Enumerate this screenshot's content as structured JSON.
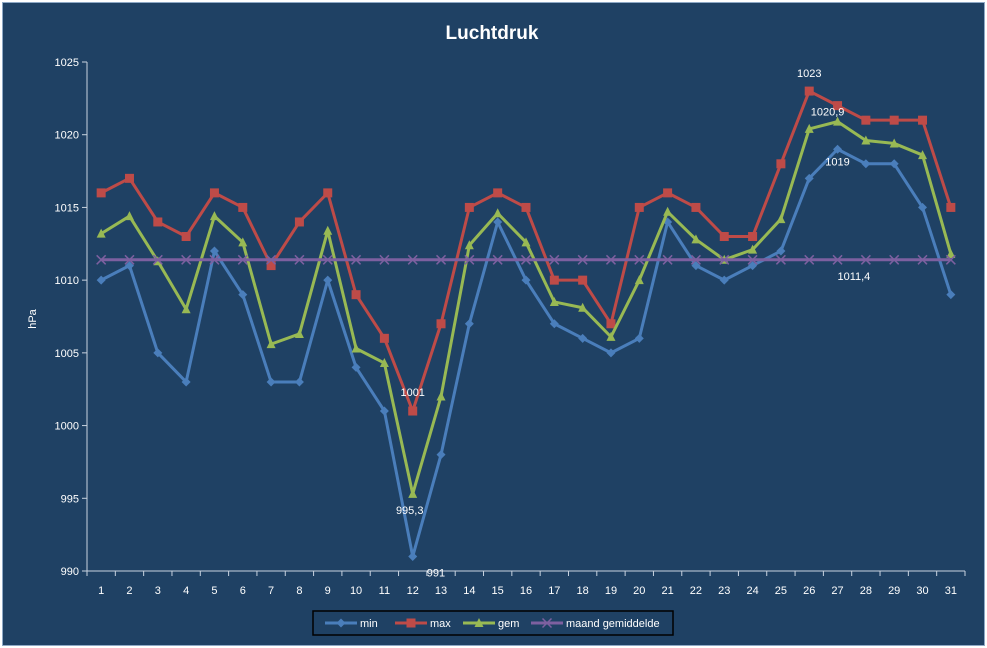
{
  "chart_data": {
    "type": "line",
    "title": "Luchtdruk",
    "ylabel": "hPa",
    "xlabel": "",
    "ylim": [
      990,
      1025
    ],
    "yticks": [
      990,
      995,
      1000,
      1005,
      1010,
      1015,
      1020,
      1025
    ],
    "grid": false,
    "legend_position": "bottom",
    "categories": [
      "1",
      "2",
      "3",
      "4",
      "5",
      "6",
      "7",
      "8",
      "9",
      "10",
      "11",
      "12",
      "13",
      "14",
      "15",
      "16",
      "17",
      "18",
      "19",
      "20",
      "21",
      "22",
      "23",
      "24",
      "25",
      "26",
      "27",
      "28",
      "29",
      "30",
      "31"
    ],
    "series": [
      {
        "name": "min",
        "color": "#4a7ebb",
        "marker": "diamond",
        "values": [
          1010,
          1011,
          1005,
          1003,
          1012,
          1009,
          1003,
          1003,
          1010,
          1004,
          1001,
          991,
          998,
          1007,
          1014,
          1010,
          1007,
          1006,
          1005,
          1006,
          1014,
          1011,
          1010,
          1011,
          1012,
          1017,
          1019,
          1018,
          1018,
          1015,
          1009
        ]
      },
      {
        "name": "max",
        "color": "#be4b48",
        "marker": "square",
        "values": [
          1016,
          1017,
          1014,
          1013,
          1016,
          1015,
          1011,
          1014,
          1016,
          1009,
          1006,
          1001,
          1007,
          1015,
          1016,
          1015,
          1010,
          1010,
          1007,
          1015,
          1016,
          1015,
          1013,
          1013,
          1018,
          1023,
          1022,
          1021,
          1021,
          1021,
          1015
        ]
      },
      {
        "name": "gem",
        "color": "#98b954",
        "marker": "triangle",
        "values": [
          1013.2,
          1014.4,
          1011.3,
          1008,
          1014.4,
          1012.6,
          1005.6,
          1006.3,
          1013.4,
          1005.3,
          1004.3,
          995.3,
          1002,
          1012.4,
          1014.6,
          1012.6,
          1008.5,
          1008.1,
          1006.1,
          1010,
          1014.7,
          1012.8,
          1011.4,
          1012.1,
          1014.2,
          1020.4,
          1020.9,
          1019.6,
          1019.4,
          1018.6,
          1011.8
        ]
      },
      {
        "name": "maand gemiddelde",
        "color": "#7d60a0",
        "marker": "x",
        "values": [
          1011.4,
          1011.4,
          1011.4,
          1011.4,
          1011.4,
          1011.4,
          1011.4,
          1011.4,
          1011.4,
          1011.4,
          1011.4,
          1011.4,
          1011.4,
          1011.4,
          1011.4,
          1011.4,
          1011.4,
          1011.4,
          1011.4,
          1011.4,
          1011.4,
          1011.4,
          1011.4,
          1011.4,
          1011.4,
          1011.4,
          1011.4,
          1011.4,
          1011.4,
          1011.4,
          1011.4
        ]
      }
    ],
    "annotations": [
      {
        "text": "1023",
        "series": "max",
        "index": 25
      },
      {
        "text": "1020,9",
        "series": "gem",
        "index": 26
      },
      {
        "text": "1019",
        "series": "min",
        "index": 26
      },
      {
        "text": "1011,4",
        "series": "maand gemiddelde",
        "index": 27
      },
      {
        "text": "1001",
        "series": "max",
        "index": 11
      },
      {
        "text": "995,3",
        "series": "gem",
        "index": 11
      },
      {
        "text": "991",
        "series": "min",
        "index": 11
      }
    ]
  }
}
